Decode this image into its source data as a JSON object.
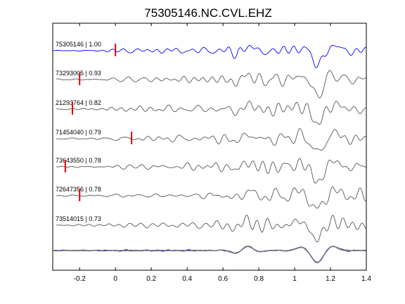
{
  "chart_data": {
    "type": "line",
    "title": "75305146.NC.CVL.EHZ",
    "xlabel": "",
    "ylabel": "",
    "xlim": [
      -0.35,
      1.4
    ],
    "xticks": [
      -0.2,
      0,
      0.2,
      0.4,
      0.6,
      0.8,
      1,
      1.2,
      1.4
    ],
    "xtick_labels": [
      "-0.2",
      "0",
      "0.2",
      "0.4",
      "0.6",
      "0.8",
      "1",
      "1.2",
      "1.4"
    ],
    "grid": false,
    "colors": {
      "reference": "#0000ff",
      "trace": "#555555",
      "pick": "#dd0000",
      "stack": "#777777"
    },
    "traces": [
      {
        "label": "75305146 | 1.00",
        "pick_time": 0.0,
        "reference": true
      },
      {
        "label": "73293005 | 0.93",
        "pick_time": -0.2
      },
      {
        "label": "21293764 | 0.82",
        "pick_time": -0.24
      },
      {
        "label": "71454040 | 0.79",
        "pick_time": 0.09
      },
      {
        "label": "73643550 | 0.78",
        "pick_time": -0.28
      },
      {
        "label": "72647356 | 0.78",
        "pick_time": -0.2
      },
      {
        "label": "73514015 | 0.73",
        "pick_time": null
      }
    ]
  }
}
